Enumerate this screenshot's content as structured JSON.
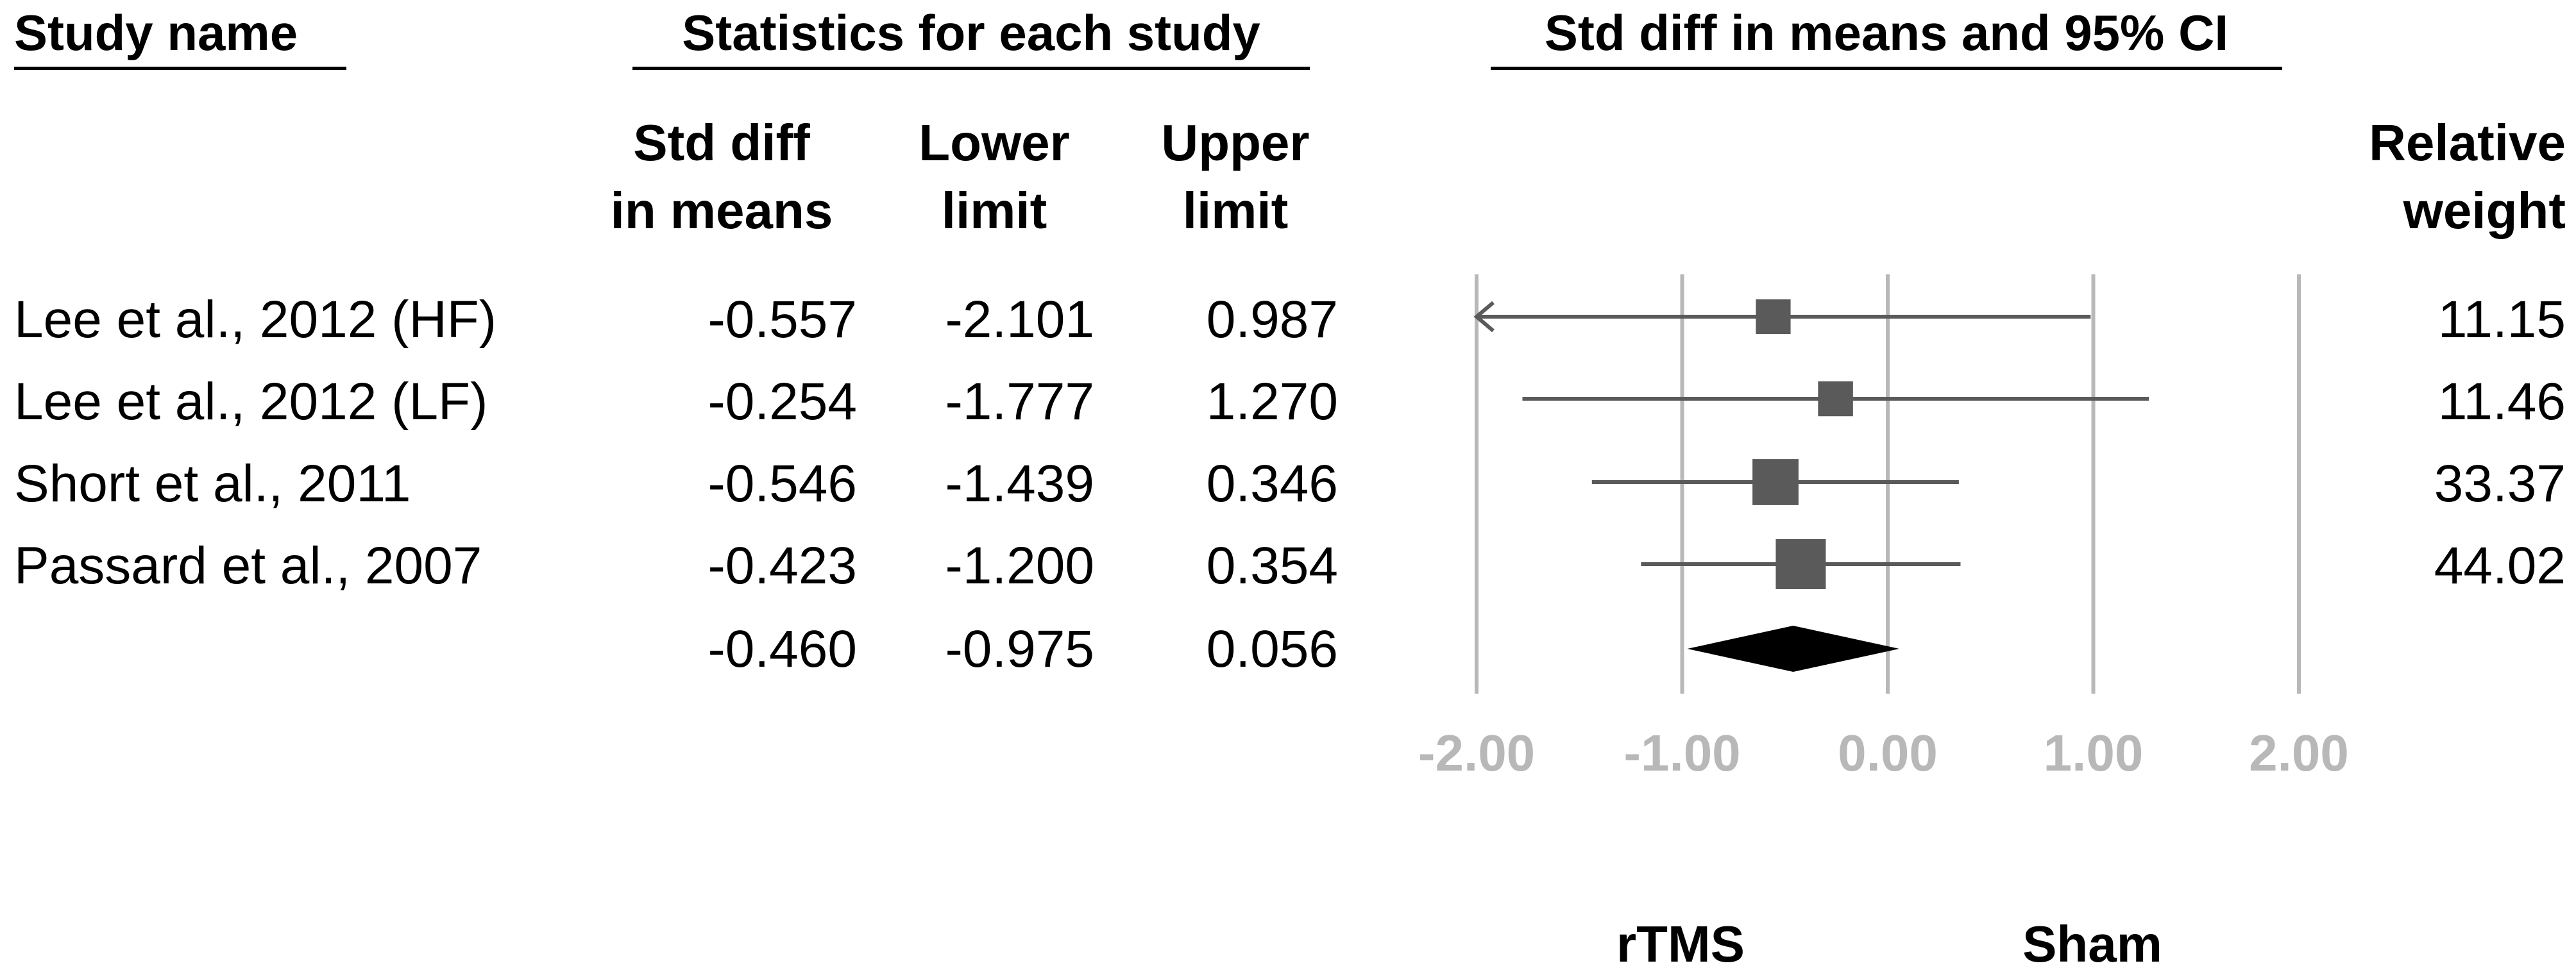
{
  "headers": {
    "study_name": "Study name",
    "statistics": "Statistics for each study",
    "effect": "Std diff in means and 95% CI"
  },
  "columns": {
    "std_diff_line1": "Std diff",
    "std_diff_line2": "in means",
    "lower_line1": "Lower",
    "lower_line2": "limit",
    "upper_line1": "Upper",
    "upper_line2": "limit",
    "weight_line1": "Relative",
    "weight_line2": "weight"
  },
  "rows": [
    {
      "study": "Lee et al., 2012 (HF)",
      "std_diff": "-0.557",
      "lower": "-2.101",
      "upper": "0.987",
      "weight": "11.15"
    },
    {
      "study": "Lee et al., 2012 (LF)",
      "std_diff": "-0.254",
      "lower": "-1.777",
      "upper": "1.270",
      "weight": "11.46"
    },
    {
      "study": "Short et al., 2011",
      "std_diff": "-0.546",
      "lower": "-1.439",
      "upper": "0.346",
      "weight": "33.37"
    },
    {
      "study": "Passard et al., 2007",
      "std_diff": "-0.423",
      "lower": "-1.200",
      "upper": "0.354",
      "weight": "44.02"
    }
  ],
  "summary": {
    "std_diff": "-0.460",
    "lower": "-0.975",
    "upper": "0.056"
  },
  "chart_data": {
    "type": "forest",
    "x_ticks": [
      "-2.00",
      "-1.00",
      "0.00",
      "1.00",
      "2.00"
    ],
    "xlim": [
      -2,
      2
    ],
    "studies": [
      {
        "estimate": -0.557,
        "lower": -2.101,
        "upper": 0.987,
        "weight": 11.15,
        "lower_truncated": true
      },
      {
        "estimate": -0.254,
        "lower": -1.777,
        "upper": 1.27,
        "weight": 11.46
      },
      {
        "estimate": -0.546,
        "lower": -1.439,
        "upper": 0.346,
        "weight": 33.37
      },
      {
        "estimate": -0.423,
        "lower": -1.2,
        "upper": 0.354,
        "weight": 44.02
      }
    ],
    "summary": {
      "estimate": -0.46,
      "lower": -0.975,
      "upper": 0.056
    },
    "favours_left": "rTMS",
    "favours_right": "Sham",
    "colors": {
      "marker": "#5a5a5a",
      "ci_line": "#5a5a5a",
      "diamond": "#000000",
      "grid": "#b8b8b8"
    }
  }
}
